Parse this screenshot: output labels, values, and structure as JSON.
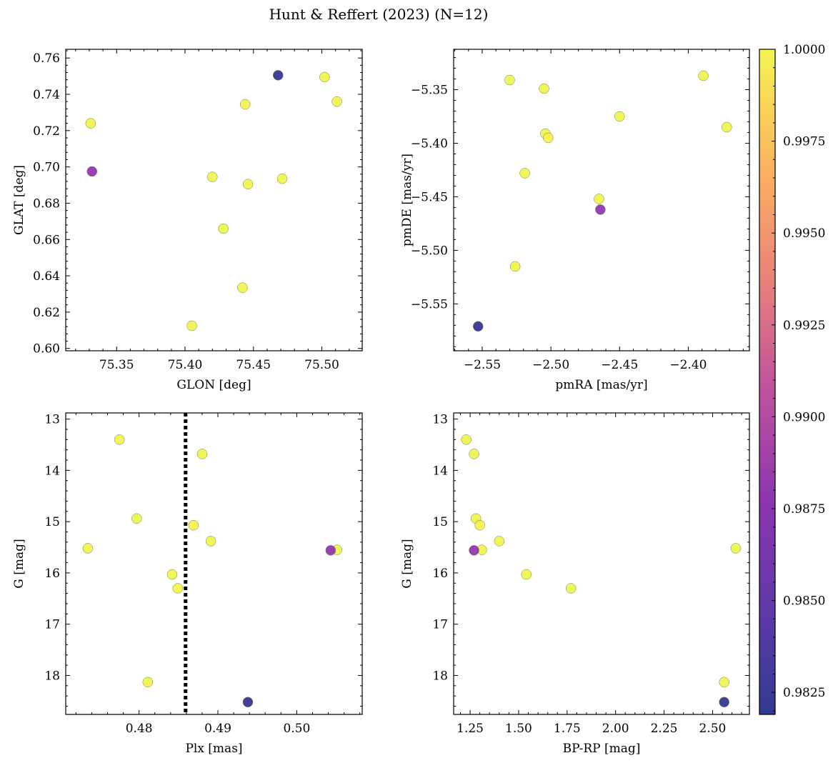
{
  "chart_data": {
    "type": "scatter",
    "title": "Hunt & Reffert (2023) (N=12)",
    "colorbar": {
      "cmap": "plasma",
      "range": [
        0.9819,
        1.0
      ],
      "ticks": [
        0.9825,
        0.985,
        0.9875,
        0.99,
        0.9925,
        0.995,
        0.9975,
        1.0
      ],
      "tick_labels": [
        "0.9825",
        "0.9850",
        "0.9875",
        "0.9900",
        "0.9925",
        "0.9950",
        "0.9975",
        "1.0000"
      ]
    },
    "stars": [
      {
        "glon": 75.468,
        "glat": 0.7505,
        "pmra": -2.553,
        "pmde": -5.571,
        "plx": 0.4938,
        "bprp": 2.56,
        "g": 18.52,
        "c": 0.9821
      },
      {
        "glon": 75.332,
        "glat": 0.6975,
        "pmra": -2.464,
        "pmde": -5.462,
        "plx": 0.5043,
        "bprp": 1.27,
        "g": 15.56,
        "c": 0.9862
      },
      {
        "glon": 75.502,
        "glat": 0.7495,
        "pmra": -2.389,
        "pmde": -5.337,
        "plx": 0.4775,
        "bprp": 1.23,
        "g": 13.4,
        "c": 1.0
      },
      {
        "glon": 75.511,
        "glat": 0.736,
        "pmra": -2.372,
        "pmde": -5.385,
        "plx": 0.488,
        "bprp": 1.27,
        "g": 13.68,
        "c": 1.0
      },
      {
        "glon": 75.331,
        "glat": 0.724,
        "pmra": -2.53,
        "pmde": -5.341,
        "plx": 0.4797,
        "bprp": 1.28,
        "g": 14.94,
        "c": 1.0
      },
      {
        "glon": 75.444,
        "glat": 0.7345,
        "pmra": -2.505,
        "pmde": -5.349,
        "plx": 0.4869,
        "bprp": 1.3,
        "g": 15.07,
        "c": 1.0
      },
      {
        "glon": 75.42,
        "glat": 0.6945,
        "pmra": -2.45,
        "pmde": -5.375,
        "plx": 0.4891,
        "bprp": 1.4,
        "g": 15.38,
        "c": 1.0
      },
      {
        "glon": 75.471,
        "glat": 0.6935,
        "pmra": -2.504,
        "pmde": -5.391,
        "plx": 0.4735,
        "bprp": 2.62,
        "g": 15.52,
        "c": 1.0
      },
      {
        "glon": 75.446,
        "glat": 0.6905,
        "pmra": -2.502,
        "pmde": -5.395,
        "plx": 0.5051,
        "bprp": 1.31,
        "g": 15.55,
        "c": 1.0
      },
      {
        "glon": 75.428,
        "glat": 0.666,
        "pmra": -2.519,
        "pmde": -5.428,
        "plx": 0.4842,
        "bprp": 1.54,
        "g": 16.03,
        "c": 1.0
      },
      {
        "glon": 75.442,
        "glat": 0.6335,
        "pmra": -2.465,
        "pmde": -5.452,
        "plx": 0.4849,
        "bprp": 1.77,
        "g": 16.3,
        "c": 1.0
      },
      {
        "glon": 75.405,
        "glat": 0.6125,
        "pmra": -2.526,
        "pmde": -5.515,
        "plx": 0.4811,
        "bprp": 2.56,
        "g": 18.13,
        "c": 1.0
      }
    ],
    "panels": [
      {
        "name": "glon-glat",
        "x": "glon",
        "y": "glat",
        "xlabel": "GLON [deg]",
        "ylabel": "GLAT [deg]",
        "xlim": [
          75.3128,
          75.5295
        ],
        "ylim": [
          0.5987,
          0.7648
        ],
        "invert_y": false,
        "xticks": [
          75.35,
          75.4,
          75.45,
          75.5
        ],
        "xtick_labels": [
          "75.35",
          "75.40",
          "75.45",
          "75.50"
        ],
        "yticks": [
          0.6,
          0.62,
          0.64,
          0.66,
          0.68,
          0.7,
          0.72,
          0.74,
          0.76
        ],
        "ytick_labels": [
          "0.60",
          "0.62",
          "0.64",
          "0.66",
          "0.68",
          "0.70",
          "0.72",
          "0.74",
          "0.76"
        ]
      },
      {
        "name": "pm",
        "x": "pmra",
        "y": "pmde",
        "xlabel": "pmRA [mas/yr]",
        "ylabel": "pmDE [mas/yr]",
        "xlim": [
          -2.5708,
          -2.3555
        ],
        "ylim": [
          -5.5938,
          -5.3123
        ],
        "invert_y": false,
        "xticks": [
          -2.55,
          -2.5,
          -2.45,
          -2.4
        ],
        "xtick_labels": [
          "−2.55",
          "−2.50",
          "−2.45",
          "−2.40"
        ],
        "yticks": [
          -5.55,
          -5.5,
          -5.45,
          -5.4,
          -5.35
        ],
        "ytick_labels": [
          "−5.55",
          "−5.50",
          "−5.45",
          "−5.40",
          "−5.35"
        ]
      },
      {
        "name": "plx-g",
        "x": "plx",
        "y": "g",
        "xlabel": "Plx [mas]",
        "ylabel": "G [mag]",
        "xlim": [
          0.4707,
          0.5083
        ],
        "ylim": [
          18.76,
          12.88
        ],
        "invert_y": true,
        "vline": 0.4859,
        "xticks": [
          0.48,
          0.49,
          0.5
        ],
        "xtick_labels": [
          "0.48",
          "0.49",
          "0.50"
        ],
        "yticks": [
          13,
          14,
          15,
          16,
          17,
          18
        ],
        "ytick_labels": [
          "13",
          "14",
          "15",
          "16",
          "17",
          "18"
        ]
      },
      {
        "name": "cmd",
        "x": "bprp",
        "y": "g",
        "xlabel": "BP-RP [mag]",
        "ylabel": "G [mag]",
        "xlim": [
          1.165,
          2.69
        ],
        "ylim": [
          18.76,
          12.88
        ],
        "invert_y": true,
        "xticks": [
          1.25,
          1.5,
          1.75,
          2.0,
          2.25,
          2.5
        ],
        "xtick_labels": [
          "1.25",
          "1.50",
          "1.75",
          "2.00",
          "2.25",
          "2.50"
        ],
        "yticks": [
          13,
          14,
          15,
          16,
          17,
          18
        ],
        "ytick_labels": [
          "13",
          "14",
          "15",
          "16",
          "17",
          "18"
        ]
      }
    ]
  }
}
